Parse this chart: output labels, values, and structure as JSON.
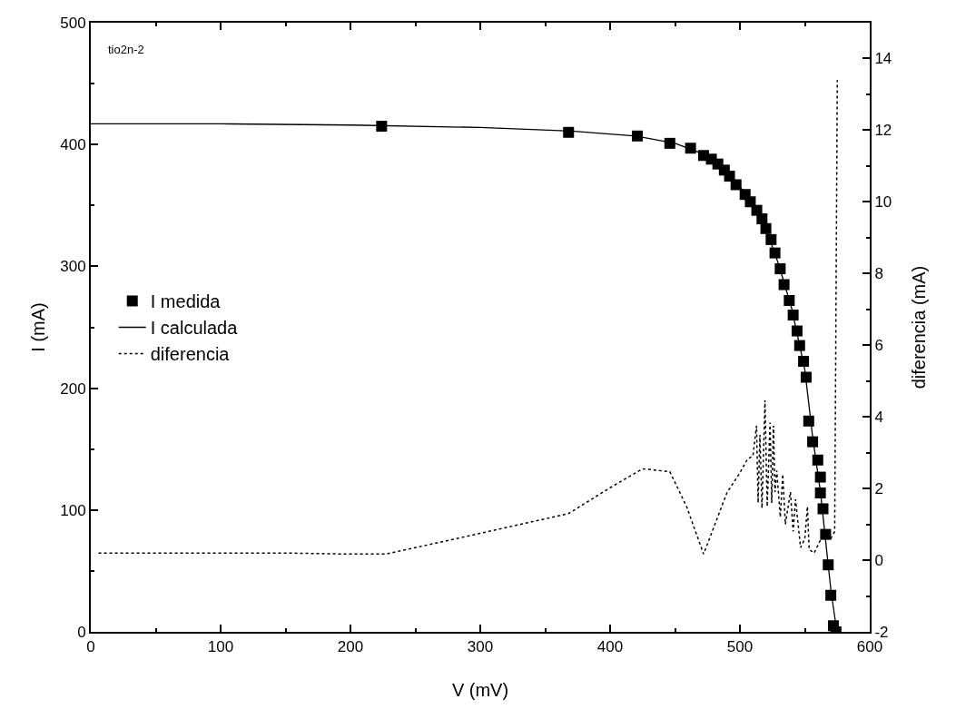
{
  "chart_data": {
    "type": "line",
    "xlabel": "V (mV)",
    "ylabel": "I (mA)",
    "y2label": "diferencia (mA)",
    "annotations": [
      "tio2n-2"
    ],
    "xlim": [
      0,
      600
    ],
    "xticks": [
      0,
      100,
      200,
      300,
      400,
      500,
      600
    ],
    "ylim": [
      0,
      500
    ],
    "yticks": [
      0,
      100,
      200,
      300,
      400,
      500
    ],
    "y2lim": [
      -2,
      15
    ],
    "y2ticks": [
      -2,
      0,
      2,
      4,
      6,
      8,
      10,
      12,
      14
    ],
    "grid": false,
    "legend": "left",
    "series": [
      {
        "name": "I medida",
        "type": "scatter",
        "marker": "square",
        "color": "#000000",
        "x": [
          224,
          368,
          421,
          446,
          462,
          472,
          478,
          483,
          488,
          492,
          497,
          504,
          508,
          513,
          517,
          520,
          524,
          527,
          531,
          534,
          538,
          541,
          544,
          546,
          549,
          551,
          553,
          556,
          560,
          562,
          562,
          564,
          566,
          568,
          570,
          572,
          574
        ],
        "values": [
          415,
          410,
          407,
          401,
          397,
          391,
          388,
          384,
          379,
          374,
          367,
          359,
          353,
          346,
          339,
          331,
          322,
          311,
          298,
          285,
          272,
          260,
          247,
          235,
          222,
          209,
          173,
          156,
          141,
          127,
          114,
          101,
          80,
          55,
          30,
          5,
          0
        ]
      },
      {
        "name": "I calculada",
        "type": "line",
        "line_style": "solid",
        "color": "#000000",
        "x": [
          0,
          100,
          200,
          300,
          370,
          420,
          450,
          470,
          490,
          505,
          520,
          530,
          540,
          550,
          556,
          562,
          566,
          570,
          574,
          577
        ],
        "values": [
          417,
          417,
          416,
          414,
          411,
          407,
          401,
          393,
          377,
          359,
          331,
          301,
          265,
          215,
          160,
          115,
          75,
          35,
          5,
          0
        ]
      },
      {
        "name": "diferencia",
        "type": "line",
        "line_style": "dotted",
        "axis": "y2",
        "color": "#000000",
        "x": [
          6,
          50,
          100,
          150,
          200,
          227,
          279,
          331,
          368,
          399,
          425,
          446,
          459,
          472,
          490,
          500,
          506,
          510,
          512.8,
          514,
          515.4,
          517,
          519.3,
          521,
          523.2,
          524.5,
          525.8,
          527,
          528.4,
          531.1,
          533,
          535,
          538.9,
          541,
          542.8,
          546.7,
          550,
          552,
          553.3,
          557.2,
          561.1,
          566.3,
          570,
          573,
          575
        ],
        "values": [
          0.2,
          0.2,
          0.2,
          0.2,
          0.17,
          0.17,
          0.58,
          1.0,
          1.3,
          2.0,
          2.55,
          2.47,
          1.49,
          0.17,
          1.88,
          2.44,
          2.83,
          2.9,
          3.75,
          1.6,
          3.5,
          1.45,
          4.46,
          1.5,
          3.84,
          1.6,
          3.75,
          1.9,
          2.5,
          1.2,
          2.4,
          1.0,
          1.9,
          0.8,
          1.7,
          0.35,
          0.6,
          1.5,
          0.3,
          0.2,
          0.5,
          0.8,
          0.6,
          0.8,
          13.4
        ]
      }
    ]
  }
}
